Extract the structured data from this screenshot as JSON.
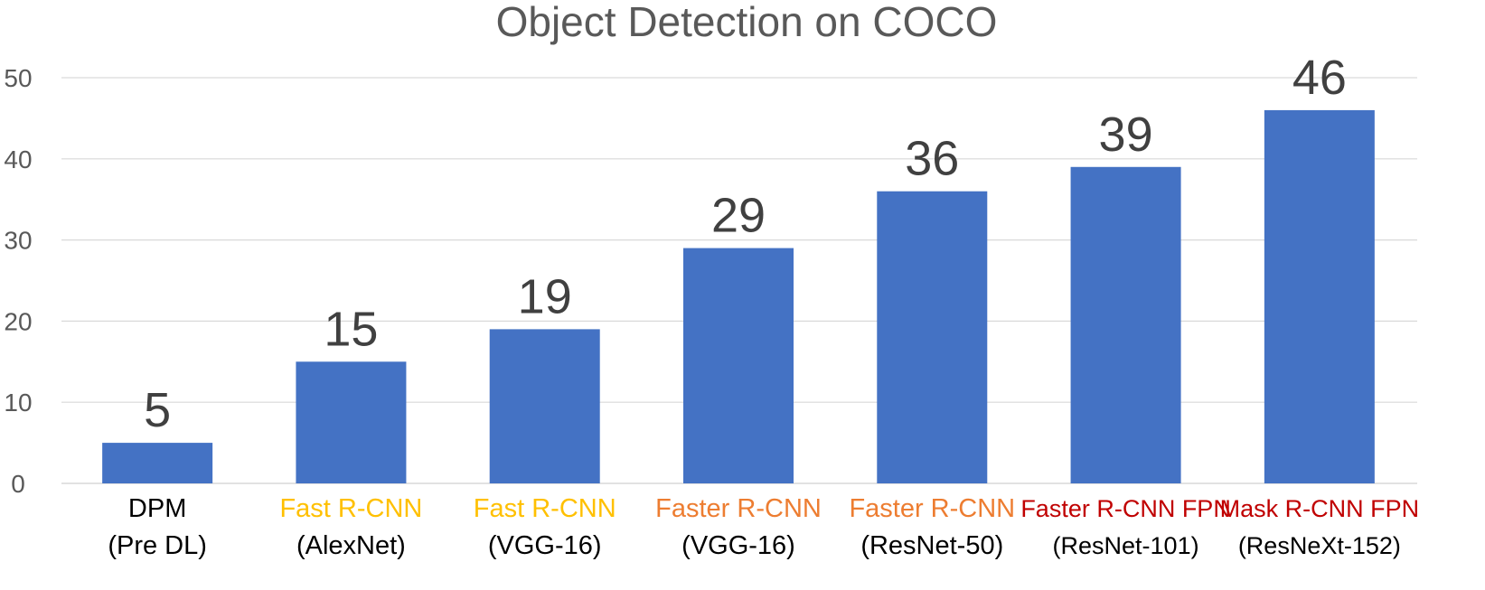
{
  "chart_data": {
    "type": "bar",
    "title": "Object Detection on COCO",
    "xlabel": "",
    "ylabel": "",
    "ylim": [
      0,
      50
    ],
    "yticks": [
      0,
      10,
      20,
      30,
      40,
      50
    ],
    "grid": true,
    "legend": "none",
    "bar_color": "#4472C4",
    "categories": [
      {
        "line1": "DPM",
        "line2": "(Pre DL)",
        "color": "#000000"
      },
      {
        "line1": "Fast R-CNN",
        "line2": "(AlexNet)",
        "color": "#FFC000"
      },
      {
        "line1": "Fast R-CNN",
        "line2": "(VGG-16)",
        "color": "#FFC000"
      },
      {
        "line1": "Faster R-CNN",
        "line2": "(VGG-16)",
        "color": "#ED7D31"
      },
      {
        "line1": "Faster R-CNN",
        "line2": "(ResNet-50)",
        "color": "#ED7D31"
      },
      {
        "line1": "Faster R-CNN FPN",
        "line2": "(ResNet-101)",
        "color": "#C00000"
      },
      {
        "line1": "Mask R-CNN FPN",
        "line2": "(ResNeXt-152)",
        "color": "#C00000"
      }
    ],
    "values": [
      5,
      15,
      19,
      29,
      36,
      39,
      46
    ],
    "data_labels": [
      "5",
      "15",
      "19",
      "29",
      "36",
      "39",
      "46"
    ]
  }
}
